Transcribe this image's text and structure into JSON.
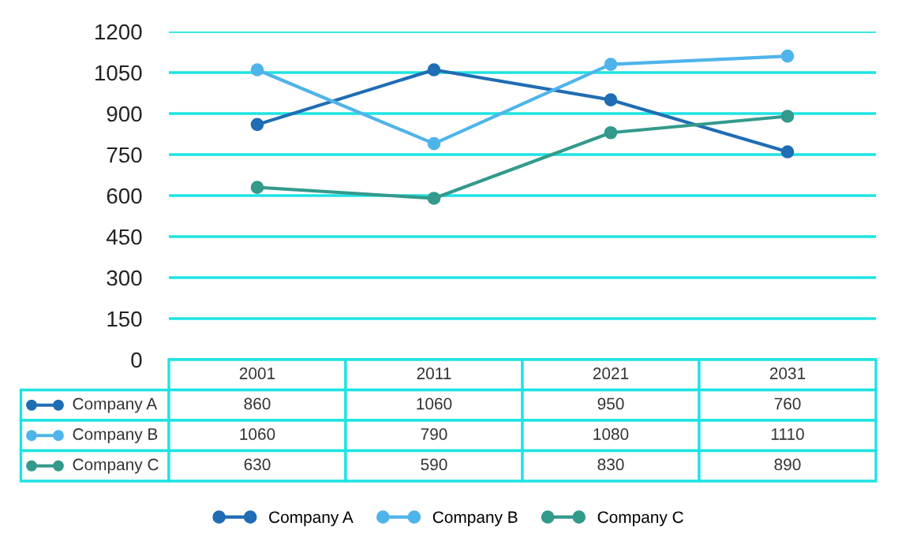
{
  "chart_data": {
    "type": "line",
    "categories": [
      "2001",
      "2011",
      "2021",
      "2031"
    ],
    "series": [
      {
        "name": "Company A",
        "color": "#1f6db4",
        "values": [
          860,
          1060,
          950,
          760
        ]
      },
      {
        "name": "Company B",
        "color": "#4fb4ea",
        "values": [
          1060,
          790,
          1080,
          1110
        ]
      },
      {
        "name": "Company C",
        "color": "#339a8c",
        "values": [
          630,
          590,
          830,
          890
        ]
      }
    ],
    "ylim": [
      0,
      1200
    ],
    "yticks": [
      0,
      150,
      300,
      450,
      600,
      750,
      900,
      1050,
      1200
    ],
    "grid": "y",
    "legend": "bottom",
    "marker": "circle",
    "line_style": "solid",
    "data_labels": true
  }
}
